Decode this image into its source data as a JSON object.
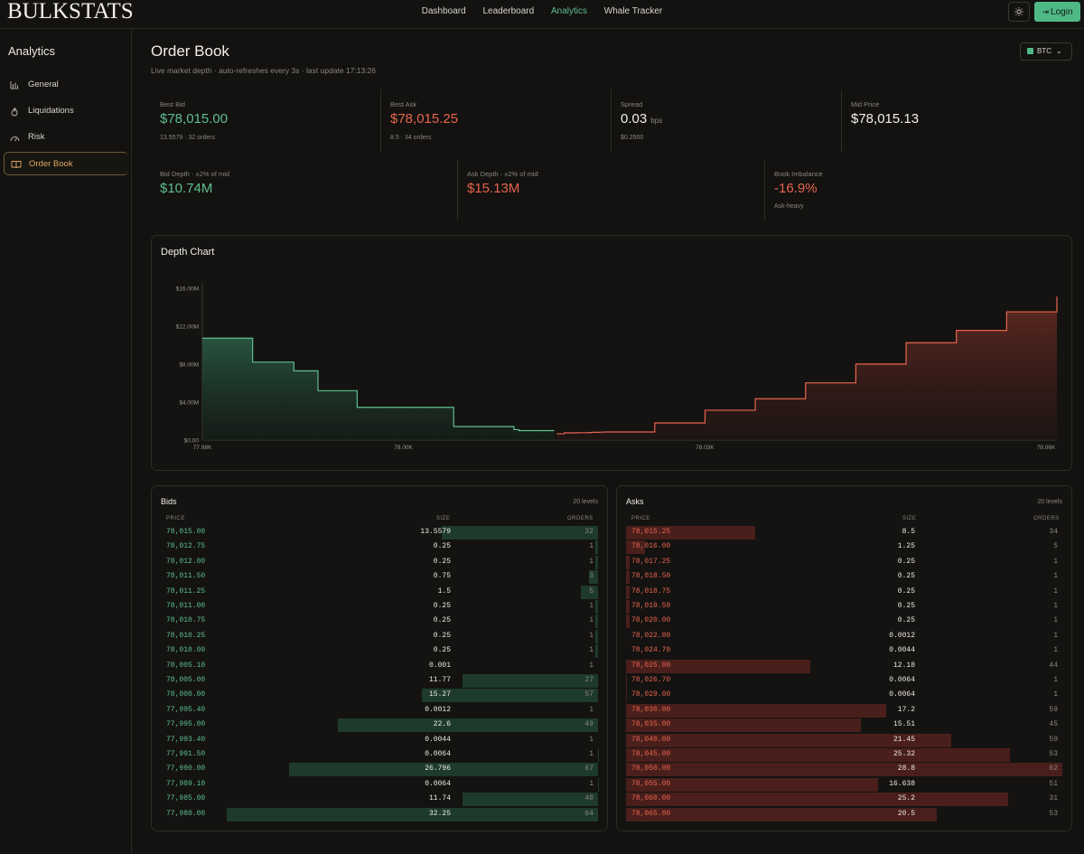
{
  "app": {
    "logo": "BULKSTATS",
    "nav": [
      "Dashboard",
      "Leaderboard",
      "Analytics",
      "Whale Tracker"
    ],
    "nav_active": "Analytics",
    "theme_icon": "sun-icon",
    "login_label": "Login",
    "login_icon": "login-arrow-icon"
  },
  "sidebar": {
    "title": "Analytics",
    "items": [
      {
        "label": "General",
        "icon": "bar-chart-icon"
      },
      {
        "label": "Liquidations",
        "icon": "flame-icon"
      },
      {
        "label": "Risk",
        "icon": "gauge-icon"
      },
      {
        "label": "Order Book",
        "icon": "book-icon"
      }
    ],
    "active": "Order Book"
  },
  "page": {
    "title": "Order Book",
    "subtitle": "Live market depth · auto-refreshes every 3s · last update 17:13:26",
    "asset": "BTC",
    "asset_color": "#4fb986"
  },
  "stats_row1": [
    {
      "label": "Best Bid",
      "value": "$78,015.00",
      "sub": "13.5579 · 32 orders",
      "color": "green"
    },
    {
      "label": "Best Ask",
      "value": "$78,015.25",
      "sub": "8.5 · 34 orders",
      "color": "red"
    },
    {
      "label": "Spread",
      "value": "0.03",
      "unit": "bps",
      "sub": "$0.2500",
      "color": "white"
    },
    {
      "label": "Mid Price",
      "value": "$78,015.13",
      "sub": "",
      "color": "white"
    }
  ],
  "stats_row2": [
    {
      "label": "Bid Depth · ±2% of mid",
      "value": "$10.74M",
      "sub": "",
      "color": "green"
    },
    {
      "label": "Ask Depth · ±2% of mid",
      "value": "$15.13M",
      "sub": "",
      "color": "red"
    },
    {
      "label": "Book Imbalance",
      "value": "-16.9%",
      "sub": "Ask-heavy",
      "color": "red"
    }
  ],
  "chart_data": {
    "type": "area",
    "title": "Depth Chart",
    "xlabel": "",
    "ylabel": "",
    "y_ticks": [
      "$0.00",
      "$4.00M",
      "$8.00M",
      "$12.00M",
      "$16.00M"
    ],
    "x_ticks": [
      "77.98K",
      "78.00K",
      "78.03K",
      "78.06K"
    ],
    "xlim": [
      77980,
      78065
    ],
    "ylim": [
      0,
      16000000
    ],
    "grid": false,
    "series": [
      {
        "side": "bids",
        "color": "#5fbf8f",
        "x": [
          77980,
          77985,
          77989.1,
          77990,
          77991.5,
          77993.4,
          77995,
          77995.4,
          78000,
          78005,
          78005.1,
          78010,
          78010.25,
          78010.75,
          78011,
          78011.25,
          78011.5,
          78012,
          78012.75,
          78015
        ],
        "y": [
          10740000,
          8220000,
          7300000,
          7300000,
          5210000,
          5210000,
          5210000,
          3450000,
          3450000,
          1430000,
          1430000,
          1430000,
          1430000,
          1430000,
          1100000,
          1100000,
          1000000,
          1000000,
          1000000,
          1000000
        ]
      },
      {
        "side": "asks",
        "color": "#e8644f",
        "x": [
          78015.25,
          78016,
          78017.25,
          78018.5,
          78018.75,
          78019.5,
          78020,
          78022.8,
          78024.7,
          78025,
          78026.7,
          78029,
          78030,
          78035,
          78040,
          78045,
          78050,
          78055,
          78060,
          78065
        ],
        "y": [
          660000,
          760000,
          780000,
          800000,
          820000,
          840000,
          860000,
          860000,
          860000,
          1810000,
          1810000,
          1810000,
          3150000,
          4360000,
          6030000,
          8010000,
          10260000,
          11560000,
          13520000,
          15130000
        ]
      }
    ]
  },
  "bids": {
    "title": "Bids",
    "levels": "20 levels",
    "headers": [
      "PRICE",
      "SIZE",
      "ORDERS"
    ],
    "rows": [
      {
        "price": "78,015.00",
        "size": "13.5579",
        "orders": "32"
      },
      {
        "price": "78,012.75",
        "size": "0.25",
        "orders": "1"
      },
      {
        "price": "78,012.00",
        "size": "0.25",
        "orders": "1"
      },
      {
        "price": "78,011.50",
        "size": "0.75",
        "orders": "3"
      },
      {
        "price": "78,011.25",
        "size": "1.5",
        "orders": "5"
      },
      {
        "price": "78,011.00",
        "size": "0.25",
        "orders": "1"
      },
      {
        "price": "78,010.75",
        "size": "0.25",
        "orders": "1"
      },
      {
        "price": "78,010.25",
        "size": "0.25",
        "orders": "1"
      },
      {
        "price": "78,010.00",
        "size": "0.25",
        "orders": "1"
      },
      {
        "price": "78,005.10",
        "size": "0.001",
        "orders": "1"
      },
      {
        "price": "78,005.00",
        "size": "11.77",
        "orders": "27"
      },
      {
        "price": "78,000.00",
        "size": "15.27",
        "orders": "57"
      },
      {
        "price": "77,995.40",
        "size": "0.0012",
        "orders": "1"
      },
      {
        "price": "77,995.00",
        "size": "22.6",
        "orders": "49"
      },
      {
        "price": "77,993.40",
        "size": "0.0044",
        "orders": "1"
      },
      {
        "price": "77,991.50",
        "size": "0.0064",
        "orders": "1"
      },
      {
        "price": "77,990.00",
        "size": "26.796",
        "orders": "67"
      },
      {
        "price": "77,989.10",
        "size": "0.0064",
        "orders": "1"
      },
      {
        "price": "77,985.00",
        "size": "11.74",
        "orders": "40"
      },
      {
        "price": "77,980.00",
        "size": "32.25",
        "orders": "64"
      }
    ]
  },
  "asks": {
    "title": "Asks",
    "levels": "20 levels",
    "headers": [
      "PRICE",
      "SIZE",
      "ORDERS"
    ],
    "rows": [
      {
        "price": "78,015.25",
        "size": "8.5",
        "orders": "34"
      },
      {
        "price": "78,016.00",
        "size": "1.25",
        "orders": "5"
      },
      {
        "price": "78,017.25",
        "size": "0.25",
        "orders": "1"
      },
      {
        "price": "78,018.50",
        "size": "0.25",
        "orders": "1"
      },
      {
        "price": "78,018.75",
        "size": "0.25",
        "orders": "1"
      },
      {
        "price": "78,019.50",
        "size": "0.25",
        "orders": "1"
      },
      {
        "price": "78,020.00",
        "size": "0.25",
        "orders": "1"
      },
      {
        "price": "78,022.80",
        "size": "0.0012",
        "orders": "1"
      },
      {
        "price": "78,024.70",
        "size": "0.0044",
        "orders": "1"
      },
      {
        "price": "78,025.00",
        "size": "12.18",
        "orders": "44"
      },
      {
        "price": "78,026.70",
        "size": "0.0064",
        "orders": "1"
      },
      {
        "price": "78,029.00",
        "size": "0.0064",
        "orders": "1"
      },
      {
        "price": "78,030.00",
        "size": "17.2",
        "orders": "59"
      },
      {
        "price": "78,035.00",
        "size": "15.51",
        "orders": "45"
      },
      {
        "price": "78,040.00",
        "size": "21.45",
        "orders": "59"
      },
      {
        "price": "78,045.00",
        "size": "25.32",
        "orders": "53"
      },
      {
        "price": "78,050.00",
        "size": "28.8",
        "orders": "62"
      },
      {
        "price": "78,055.00",
        "size": "16.638",
        "orders": "51"
      },
      {
        "price": "78,060.00",
        "size": "25.2",
        "orders": "31"
      },
      {
        "price": "78,065.00",
        "size": "20.5",
        "orders": "53"
      }
    ]
  }
}
